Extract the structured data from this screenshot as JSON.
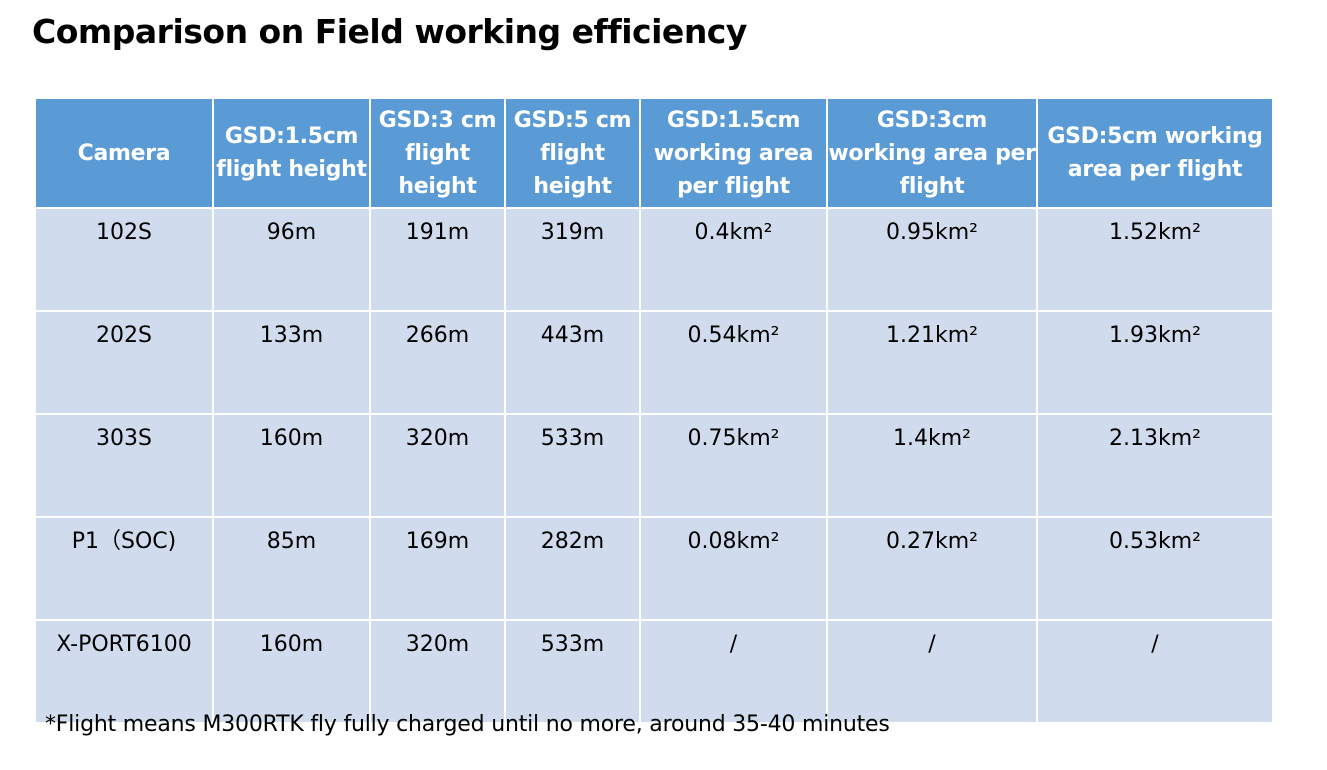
{
  "title": "Comparison on Field working efficiency",
  "columns": [
    "Camera",
    "GSD:1.5cm flight height",
    "GSD:3 cm flight height",
    "GSD:5 cm flight height",
    "GSD:1.5cm working area per flight",
    "GSD:3cm working area per flight",
    "GSD:5cm working area per flight"
  ],
  "rows": [
    [
      "102S",
      "96m",
      "191m",
      "319m",
      "0.4km²",
      "0.95km²",
      "1.52km²"
    ],
    [
      "202S",
      "133m",
      "266m",
      "443m",
      "0.54km²",
      "1.21km²",
      "1.93km²"
    ],
    [
      "303S",
      "160m",
      "320m",
      "533m",
      "0.75km²",
      "1.4km²",
      "2.13km²"
    ],
    [
      "P1（SOC)",
      "85m",
      "169m",
      "282m",
      "0.08km²",
      "0.27km²",
      "0.53km²"
    ],
    [
      "X-PORT6100",
      "160m",
      "320m",
      "533m",
      "/",
      "/",
      "/"
    ]
  ],
  "footnote": "*Flight means M300RTK fly fully charged until no more, around 35-40 minutes",
  "colors": {
    "header_bg": "#5b9bd5",
    "row_bg": "#d0dcee",
    "header_text": "#ffffff"
  }
}
